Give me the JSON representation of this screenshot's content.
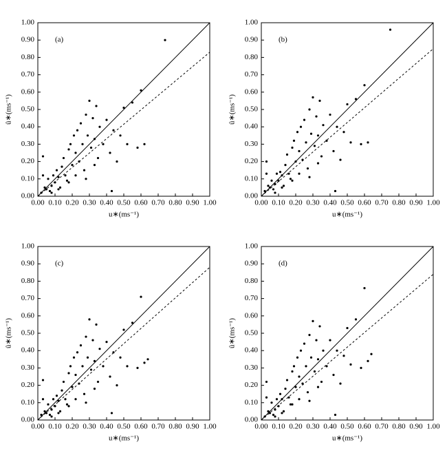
{
  "chart_data": [
    {
      "type": "scatter",
      "title": "(a)",
      "x_label": "u∗(ms⁻¹)",
      "y_label": "û∗(ms⁻¹)",
      "xlim": [
        0,
        1
      ],
      "ylim": [
        0,
        1
      ],
      "xticks": [
        {
          "value": 0,
          "label": "0.00"
        },
        {
          "value": 0.1,
          "label": "0.10"
        },
        {
          "value": 0.2,
          "label": "0.20"
        },
        {
          "value": 0.3,
          "label": "0.30"
        },
        {
          "value": 0.4,
          "label": "0.40"
        },
        {
          "value": 0.5,
          "label": "0.50"
        },
        {
          "value": 0.6,
          "label": "0.60"
        },
        {
          "value": 0.7,
          "label": "0.70"
        },
        {
          "value": 0.8,
          "label": "0.80"
        },
        {
          "value": 0.9,
          "label": "0.90"
        },
        {
          "value": 1,
          "label": "1.00"
        }
      ],
      "yticks": [
        {
          "value": 0,
          "label": "0.00"
        },
        {
          "value": 0.1,
          "label": "0.10"
        },
        {
          "value": 0.2,
          "label": "0.20"
        },
        {
          "value": 0.3,
          "label": "0.30"
        },
        {
          "value": 0.4,
          "label": "0.40"
        },
        {
          "value": 0.5,
          "label": "0.50"
        },
        {
          "value": 0.6,
          "label": "0.60"
        },
        {
          "value": 0.7,
          "label": "0.70"
        },
        {
          "value": 0.8,
          "label": "0.80"
        },
        {
          "value": 0.9,
          "label": "0.90"
        },
        {
          "value": 1,
          "label": "1.00"
        }
      ],
      "series": [
        {
          "mode": "markers",
          "color": "#000000",
          "x": [
            0.02,
            0.03,
            0.04,
            0.05,
            0.06,
            0.07,
            0.08,
            0.09,
            0.1,
            0.11,
            0.12,
            0.13,
            0.14,
            0.15,
            0.16,
            0.17,
            0.18,
            0.19,
            0.2,
            0.21,
            0.22,
            0.23,
            0.24,
            0.25,
            0.26,
            0.27,
            0.28,
            0.29,
            0.3,
            0.31,
            0.32,
            0.33,
            0.34,
            0.35,
            0.36,
            0.38,
            0.4,
            0.42,
            0.44,
            0.46,
            0.48,
            0.5,
            0.52,
            0.55,
            0.58,
            0.6,
            0.62,
            0.74,
            0.03,
            0.08,
            0.12,
            0.18,
            0.22,
            0.28,
            0.33,
            0.43
          ],
          "values": [
            0.02,
            0.23,
            0.05,
            0.04,
            0.1,
            0.03,
            0.06,
            0.12,
            0.08,
            0.15,
            0.11,
            0.05,
            0.17,
            0.22,
            0.12,
            0.09,
            0.27,
            0.3,
            0.18,
            0.35,
            0.25,
            0.38,
            0.2,
            0.42,
            0.3,
            0.15,
            0.47,
            0.35,
            0.55,
            0.28,
            0.45,
            0.33,
            0.52,
            0.22,
            0.4,
            0.3,
            0.44,
            0.25,
            0.38,
            0.2,
            0.35,
            0.51,
            0.3,
            0.54,
            0.28,
            0.61,
            0.3,
            0.9,
            0.12,
            0.02,
            0.04,
            0.08,
            0.12,
            0.1,
            0.18,
            0.03
          ]
        },
        {
          "mode": "line",
          "style": "solid",
          "color": "#000000",
          "x": [
            0,
            1
          ],
          "values": [
            0,
            1
          ]
        },
        {
          "mode": "line",
          "style": "dashed",
          "color": "#000000",
          "x": [
            0,
            1
          ],
          "values": [
            0,
            0.83
          ]
        }
      ]
    },
    {
      "type": "scatter",
      "title": "(b)",
      "x_label": "u∗(ms⁻¹)",
      "y_label": "û∗(ms⁻¹)",
      "xlim": [
        0,
        1
      ],
      "ylim": [
        0,
        1
      ],
      "xticks": [
        {
          "value": 0,
          "label": "0.00"
        },
        {
          "value": 0.1,
          "label": "0.10"
        },
        {
          "value": 0.2,
          "label": "0.20"
        },
        {
          "value": 0.3,
          "label": "0.30"
        },
        {
          "value": 0.4,
          "label": "0.40"
        },
        {
          "value": 0.5,
          "label": "0.50"
        },
        {
          "value": 0.6,
          "label": "0.60"
        },
        {
          "value": 0.7,
          "label": "0.70"
        },
        {
          "value": 0.8,
          "label": "0.80"
        },
        {
          "value": 0.9,
          "label": "0.90"
        },
        {
          "value": 1,
          "label": "1.00"
        }
      ],
      "yticks": [
        {
          "value": 0,
          "label": "0.00"
        },
        {
          "value": 0.1,
          "label": "0.10"
        },
        {
          "value": 0.2,
          "label": "0.20"
        },
        {
          "value": 0.3,
          "label": "0.30"
        },
        {
          "value": 0.4,
          "label": "0.40"
        },
        {
          "value": 0.5,
          "label": "0.50"
        },
        {
          "value": 0.6,
          "label": "0.60"
        },
        {
          "value": 0.7,
          "label": "0.70"
        },
        {
          "value": 0.8,
          "label": "0.80"
        },
        {
          "value": 0.9,
          "label": "0.90"
        },
        {
          "value": 1,
          "label": "1.00"
        }
      ],
      "series": [
        {
          "mode": "markers",
          "color": "#000000",
          "x": [
            0.02,
            0.03,
            0.04,
            0.05,
            0.06,
            0.07,
            0.08,
            0.09,
            0.1,
            0.11,
            0.12,
            0.13,
            0.14,
            0.15,
            0.16,
            0.17,
            0.18,
            0.19,
            0.2,
            0.21,
            0.22,
            0.23,
            0.24,
            0.25,
            0.26,
            0.27,
            0.28,
            0.29,
            0.3,
            0.31,
            0.32,
            0.33,
            0.34,
            0.35,
            0.36,
            0.38,
            0.4,
            0.42,
            0.44,
            0.46,
            0.48,
            0.5,
            0.52,
            0.55,
            0.58,
            0.6,
            0.62,
            0.75,
            0.03,
            0.08,
            0.12,
            0.18,
            0.22,
            0.28,
            0.33,
            0.43
          ],
          "values": [
            0.03,
            0.2,
            0.06,
            0.05,
            0.09,
            0.04,
            0.07,
            0.13,
            0.09,
            0.14,
            0.12,
            0.06,
            0.18,
            0.24,
            0.13,
            0.1,
            0.28,
            0.32,
            0.2,
            0.37,
            0.26,
            0.4,
            0.21,
            0.44,
            0.31,
            0.16,
            0.5,
            0.36,
            0.57,
            0.29,
            0.46,
            0.35,
            0.55,
            0.23,
            0.41,
            0.32,
            0.47,
            0.26,
            0.4,
            0.21,
            0.37,
            0.53,
            0.31,
            0.56,
            0.3,
            0.64,
            0.31,
            0.96,
            0.13,
            0.02,
            0.05,
            0.09,
            0.13,
            0.11,
            0.19,
            0.03
          ]
        },
        {
          "mode": "line",
          "style": "solid",
          "color": "#000000",
          "x": [
            0,
            1
          ],
          "values": [
            0,
            1
          ]
        },
        {
          "mode": "line",
          "style": "dashed",
          "color": "#000000",
          "x": [
            0,
            1
          ],
          "values": [
            0,
            0.85
          ]
        }
      ]
    },
    {
      "type": "scatter",
      "title": "(c)",
      "x_label": "u∗(ms⁻¹)",
      "y_label": "û∗(ms⁻¹)",
      "xlim": [
        0,
        1
      ],
      "ylim": [
        0,
        1
      ],
      "xticks": [
        {
          "value": 0,
          "label": "0.00"
        },
        {
          "value": 0.1,
          "label": "0.10"
        },
        {
          "value": 0.2,
          "label": "0.20"
        },
        {
          "value": 0.3,
          "label": "0.30"
        },
        {
          "value": 0.4,
          "label": "0.40"
        },
        {
          "value": 0.5,
          "label": "0.50"
        },
        {
          "value": 0.6,
          "label": "0.60"
        },
        {
          "value": 0.7,
          "label": "0.70"
        },
        {
          "value": 0.8,
          "label": "0.80"
        },
        {
          "value": 0.9,
          "label": "0.90"
        },
        {
          "value": 1,
          "label": "1.00"
        }
      ],
      "yticks": [
        {
          "value": 0,
          "label": "0.00"
        },
        {
          "value": 0.1,
          "label": "0.10"
        },
        {
          "value": 0.2,
          "label": "0.20"
        },
        {
          "value": 0.3,
          "label": "0.30"
        },
        {
          "value": 0.4,
          "label": "0.40"
        },
        {
          "value": 0.5,
          "label": "0.50"
        },
        {
          "value": 0.6,
          "label": "0.60"
        },
        {
          "value": 0.7,
          "label": "0.70"
        },
        {
          "value": 0.8,
          "label": "0.80"
        },
        {
          "value": 0.9,
          "label": "0.90"
        },
        {
          "value": 1,
          "label": "1.00"
        }
      ],
      "series": [
        {
          "mode": "markers",
          "color": "#000000",
          "x": [
            0.02,
            0.03,
            0.04,
            0.05,
            0.06,
            0.07,
            0.08,
            0.09,
            0.1,
            0.11,
            0.12,
            0.13,
            0.14,
            0.15,
            0.16,
            0.17,
            0.18,
            0.19,
            0.2,
            0.21,
            0.22,
            0.23,
            0.24,
            0.25,
            0.26,
            0.27,
            0.28,
            0.29,
            0.3,
            0.31,
            0.32,
            0.33,
            0.34,
            0.35,
            0.36,
            0.38,
            0.4,
            0.42,
            0.44,
            0.46,
            0.48,
            0.5,
            0.52,
            0.55,
            0.58,
            0.64,
            0.62,
            0.6,
            0.03,
            0.08,
            0.12,
            0.18,
            0.22,
            0.28,
            0.33,
            0.43
          ],
          "values": [
            0.03,
            0.23,
            0.05,
            0.04,
            0.09,
            0.03,
            0.06,
            0.12,
            0.08,
            0.14,
            0.11,
            0.05,
            0.17,
            0.22,
            0.12,
            0.09,
            0.27,
            0.31,
            0.19,
            0.36,
            0.26,
            0.39,
            0.21,
            0.43,
            0.31,
            0.15,
            0.48,
            0.36,
            0.58,
            0.29,
            0.46,
            0.34,
            0.55,
            0.22,
            0.41,
            0.31,
            0.45,
            0.25,
            0.39,
            0.2,
            0.36,
            0.52,
            0.31,
            0.56,
            0.3,
            0.35,
            0.33,
            0.71,
            0.12,
            0.02,
            0.04,
            0.08,
            0.12,
            0.1,
            0.18,
            0.04
          ]
        },
        {
          "mode": "line",
          "style": "solid",
          "color": "#000000",
          "x": [
            0,
            1
          ],
          "values": [
            0,
            1
          ]
        },
        {
          "mode": "line",
          "style": "dashed",
          "color": "#000000",
          "x": [
            0,
            1
          ],
          "values": [
            0,
            0.88
          ]
        }
      ]
    },
    {
      "type": "scatter",
      "title": "(d)",
      "x_label": "u∗(ms⁻¹)",
      "y_label": "û∗(ms⁻¹)",
      "xlim": [
        0,
        1
      ],
      "ylim": [
        0,
        1
      ],
      "xticks": [
        {
          "value": 0,
          "label": "0.00"
        },
        {
          "value": 0.1,
          "label": "0.10"
        },
        {
          "value": 0.2,
          "label": "0.20"
        },
        {
          "value": 0.3,
          "label": "0.30"
        },
        {
          "value": 0.4,
          "label": "0.40"
        },
        {
          "value": 0.5,
          "label": "0.50"
        },
        {
          "value": 0.6,
          "label": "0.60"
        },
        {
          "value": 0.7,
          "label": "0.70"
        },
        {
          "value": 0.8,
          "label": "0.80"
        },
        {
          "value": 0.9,
          "label": "0.90"
        },
        {
          "value": 1,
          "label": "1.00"
        }
      ],
      "yticks": [
        {
          "value": 0,
          "label": "0.00"
        },
        {
          "value": 0.1,
          "label": "0.10"
        },
        {
          "value": 0.2,
          "label": "0.20"
        },
        {
          "value": 0.3,
          "label": "0.30"
        },
        {
          "value": 0.4,
          "label": "0.40"
        },
        {
          "value": 0.5,
          "label": "0.50"
        },
        {
          "value": 0.6,
          "label": "0.60"
        },
        {
          "value": 0.7,
          "label": "0.70"
        },
        {
          "value": 0.8,
          "label": "0.80"
        },
        {
          "value": 0.9,
          "label": "0.90"
        },
        {
          "value": 1,
          "label": "1.00"
        }
      ],
      "series": [
        {
          "mode": "markers",
          "color": "#000000",
          "x": [
            0.02,
            0.03,
            0.04,
            0.05,
            0.06,
            0.07,
            0.08,
            0.09,
            0.1,
            0.11,
            0.12,
            0.13,
            0.14,
            0.15,
            0.16,
            0.17,
            0.18,
            0.19,
            0.2,
            0.21,
            0.22,
            0.23,
            0.24,
            0.25,
            0.26,
            0.27,
            0.28,
            0.29,
            0.3,
            0.31,
            0.32,
            0.33,
            0.34,
            0.35,
            0.36,
            0.38,
            0.4,
            0.42,
            0.44,
            0.46,
            0.48,
            0.5,
            0.52,
            0.55,
            0.58,
            0.64,
            0.62,
            0.6,
            0.03,
            0.08,
            0.12,
            0.18,
            0.22,
            0.28,
            0.33,
            0.43
          ],
          "values": [
            0.02,
            0.22,
            0.05,
            0.04,
            0.1,
            0.03,
            0.06,
            0.12,
            0.08,
            0.15,
            0.12,
            0.05,
            0.18,
            0.23,
            0.13,
            0.09,
            0.28,
            0.31,
            0.19,
            0.36,
            0.25,
            0.4,
            0.21,
            0.44,
            0.31,
            0.16,
            0.49,
            0.36,
            0.57,
            0.28,
            0.46,
            0.35,
            0.54,
            0.22,
            0.4,
            0.31,
            0.46,
            0.26,
            0.4,
            0.21,
            0.37,
            0.53,
            0.32,
            0.58,
            0.3,
            0.38,
            0.34,
            0.76,
            0.13,
            0.02,
            0.04,
            0.09,
            0.12,
            0.11,
            0.19,
            0.03
          ]
        },
        {
          "mode": "line",
          "style": "solid",
          "color": "#000000",
          "x": [
            0,
            1
          ],
          "values": [
            0,
            1
          ]
        },
        {
          "mode": "line",
          "style": "dashed",
          "color": "#000000",
          "x": [
            0,
            1
          ],
          "values": [
            0,
            0.84
          ]
        }
      ]
    }
  ]
}
